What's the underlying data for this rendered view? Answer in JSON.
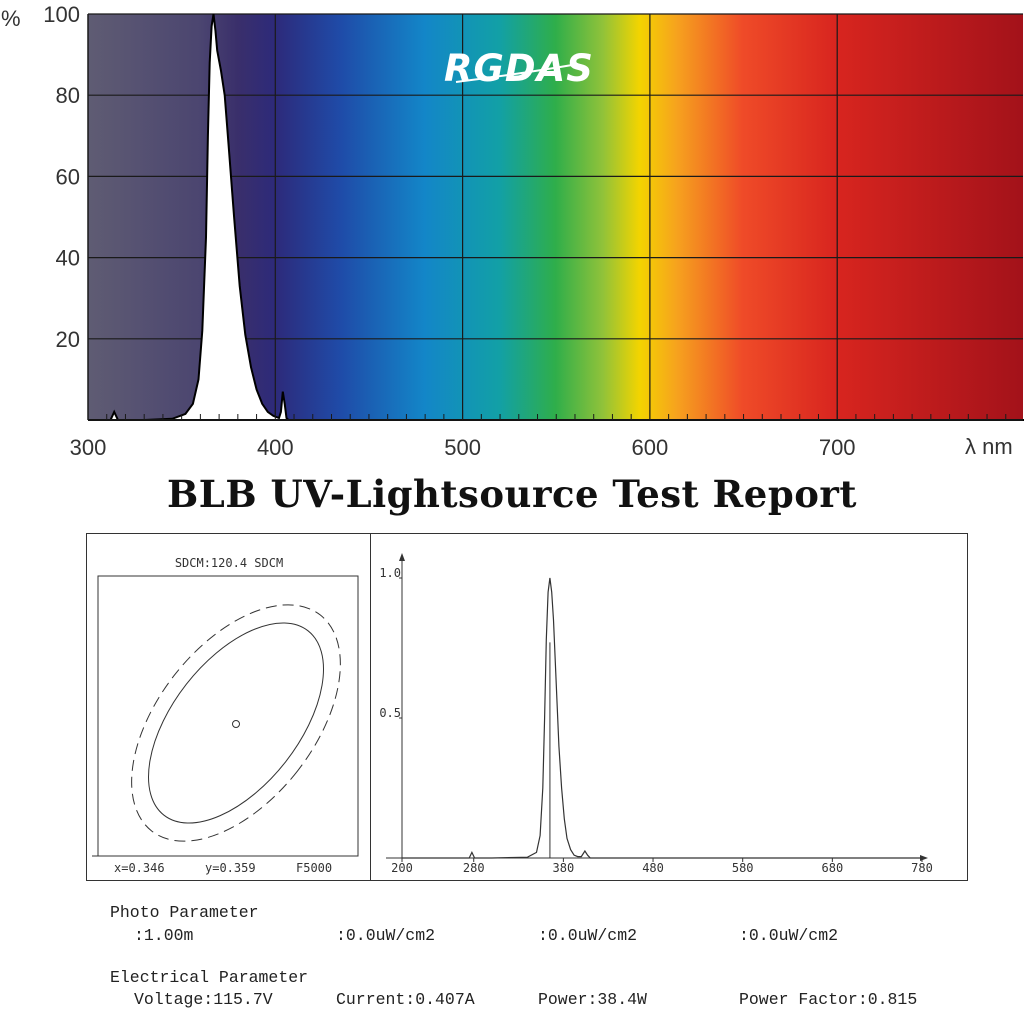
{
  "logo": {
    "text": "RGDAS"
  },
  "title": "BLB UV-Lightsource Test Report",
  "chart_data": [
    {
      "type": "line",
      "title": "",
      "xlabel": "λ nm",
      "ylabel": "%",
      "xlim": [
        300,
        1000
      ],
      "ylim": [
        0,
        100
      ],
      "x_ticks": [
        300,
        400,
        500,
        600,
        700
      ],
      "x_tick_labels": [
        "300",
        "400",
        "500",
        "600",
        "700"
      ],
      "y_ticks": [
        20,
        40,
        60,
        80,
        100
      ],
      "y_tick_labels": [
        "20",
        "40",
        "60",
        "80",
        "100"
      ],
      "background": "visible-spectrum gradient",
      "grid": true,
      "series": [
        {
          "x": [
            300,
            312,
            314,
            316,
            330,
            345,
            352,
            356,
            359,
            361,
            363,
            364,
            365,
            366,
            367,
            368,
            369,
            371,
            373,
            375,
            378,
            381,
            384,
            387,
            390,
            393,
            396,
            399,
            402,
            403,
            404,
            405,
            406,
            407,
            410,
            430,
            1000
          ],
          "y": [
            0,
            0,
            2,
            0,
            0,
            0.3,
            1.5,
            4,
            10,
            22,
            45,
            70,
            88,
            97,
            100,
            96,
            91,
            86,
            80,
            68,
            50,
            33,
            21,
            13,
            7.5,
            4,
            2,
            1,
            0.5,
            2,
            7,
            4,
            0.5,
            0,
            0,
            0,
            0
          ]
        }
      ]
    },
    {
      "type": "scatter",
      "title": "SDCM:120.4 SDCM",
      "point": {
        "x": 0.346,
        "y": 0.359
      },
      "labels": {
        "x": "x=0.346",
        "y": "y=0.359",
        "ref": "F5000"
      }
    },
    {
      "type": "line",
      "title": "",
      "xlim": [
        200,
        780
      ],
      "ylim": [
        0,
        1.0
      ],
      "x_ticks": [
        200,
        280,
        380,
        480,
        580,
        680,
        780
      ],
      "x_tick_labels": [
        "200",
        "280",
        "380",
        "480",
        "580",
        "680",
        "780"
      ],
      "y_ticks": [
        0.5,
        1.0
      ],
      "y_tick_labels": [
        "0.5",
        "1.0"
      ],
      "peak_marker_x": 365,
      "series": [
        {
          "x": [
            200,
            275,
            278,
            281,
            300,
            340,
            350,
            354,
            357,
            359,
            361,
            363,
            365,
            367,
            369,
            371,
            373,
            375,
            378,
            381,
            384,
            388,
            392,
            396,
            400,
            404,
            407,
            410,
            430,
            780
          ],
          "y": [
            0,
            0,
            0.02,
            0,
            0,
            0.003,
            0.02,
            0.08,
            0.25,
            0.5,
            0.78,
            0.95,
            1.0,
            0.95,
            0.85,
            0.7,
            0.55,
            0.4,
            0.25,
            0.14,
            0.07,
            0.03,
            0.01,
            0.005,
            0.005,
            0.025,
            0.01,
            0,
            0,
            0
          ]
        }
      ]
    }
  ],
  "photo": {
    "header": "Photo Parameter",
    "distance": ":1.00m",
    "val1": ":0.0uW/cm2",
    "val2": ":0.0uW/cm2",
    "val3": ":0.0uW/cm2"
  },
  "electrical": {
    "header": "Electrical Parameter",
    "voltage": "Voltage:115.7V",
    "current": "Current:0.407A",
    "power": "Power:38.4W",
    "power_factor": "Power Factor:0.815"
  }
}
